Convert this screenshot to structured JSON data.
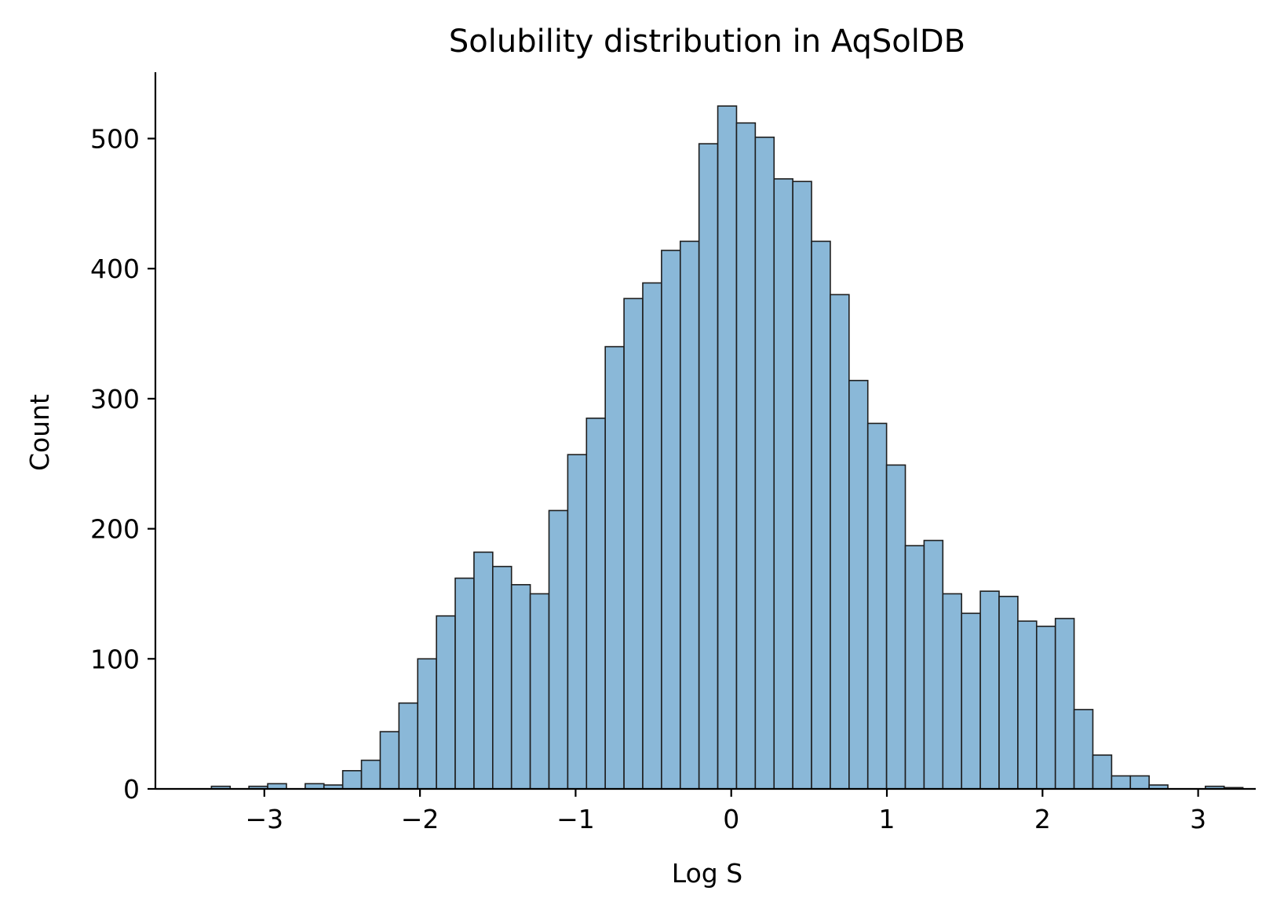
{
  "chart_data": {
    "type": "bar",
    "title": "Solubility distribution in AqSolDB",
    "xlabel": "Log S",
    "ylabel": "Count",
    "xlim": [
      -3.7,
      3.37
    ],
    "ylim": [
      0,
      551
    ],
    "grid": false,
    "bin_width": 0.1205,
    "bin_start": -3.34,
    "x_ticks": [
      {
        "value": -3,
        "label": "−3"
      },
      {
        "value": -2,
        "label": "−2"
      },
      {
        "value": -1,
        "label": "−1"
      },
      {
        "value": 0,
        "label": "0"
      },
      {
        "value": 1,
        "label": "1"
      },
      {
        "value": 2,
        "label": "2"
      },
      {
        "value": 3,
        "label": "3"
      }
    ],
    "y_ticks": [
      {
        "value": 0,
        "label": "0"
      },
      {
        "value": 100,
        "label": "100"
      },
      {
        "value": 200,
        "label": "200"
      },
      {
        "value": 300,
        "label": "300"
      },
      {
        "value": 400,
        "label": "400"
      },
      {
        "value": 500,
        "label": "500"
      }
    ],
    "values": [
      2,
      0,
      2,
      4,
      0,
      4,
      3,
      14,
      22,
      44,
      66,
      100,
      133,
      162,
      182,
      171,
      157,
      150,
      214,
      257,
      285,
      340,
      377,
      389,
      414,
      421,
      496,
      525,
      512,
      501,
      469,
      467,
      421,
      380,
      314,
      281,
      249,
      187,
      191,
      150,
      135,
      152,
      148,
      129,
      125,
      131,
      61,
      26,
      10,
      10,
      3,
      0,
      0,
      2,
      1
    ]
  }
}
